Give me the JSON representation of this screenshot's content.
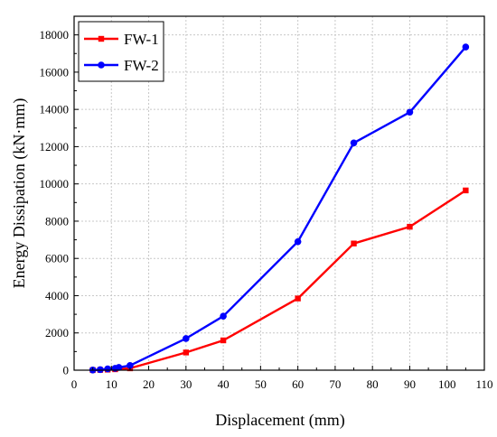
{
  "chart_data": {
    "type": "line",
    "title": "",
    "xlabel": "Displacement (mm)",
    "ylabel": "Energy Dissipation (kN·mm)",
    "xlim": [
      0,
      110
    ],
    "ylim": [
      0,
      19000
    ],
    "x_ticks": [
      0,
      10,
      20,
      30,
      40,
      50,
      60,
      70,
      80,
      90,
      100,
      110
    ],
    "y_ticks": [
      0,
      2000,
      4000,
      6000,
      8000,
      10000,
      12000,
      14000,
      16000,
      18000
    ],
    "grid": true,
    "legend_position": "top-left",
    "series": [
      {
        "name": "FW-1",
        "color": "#ff0000",
        "marker": "square",
        "x": [
          5,
          7,
          9,
          11,
          15,
          30,
          40,
          60,
          75,
          90,
          105
        ],
        "y": [
          5,
          15,
          30,
          50,
          100,
          950,
          1600,
          3850,
          6800,
          7700,
          9650
        ]
      },
      {
        "name": "FW-2",
        "color": "#0000ff",
        "marker": "circle",
        "x": [
          5,
          7,
          9,
          11,
          12,
          15,
          30,
          40,
          60,
          75,
          90,
          105
        ],
        "y": [
          10,
          30,
          70,
          100,
          150,
          250,
          1700,
          2900,
          6900,
          12200,
          13850,
          17350
        ]
      }
    ]
  }
}
